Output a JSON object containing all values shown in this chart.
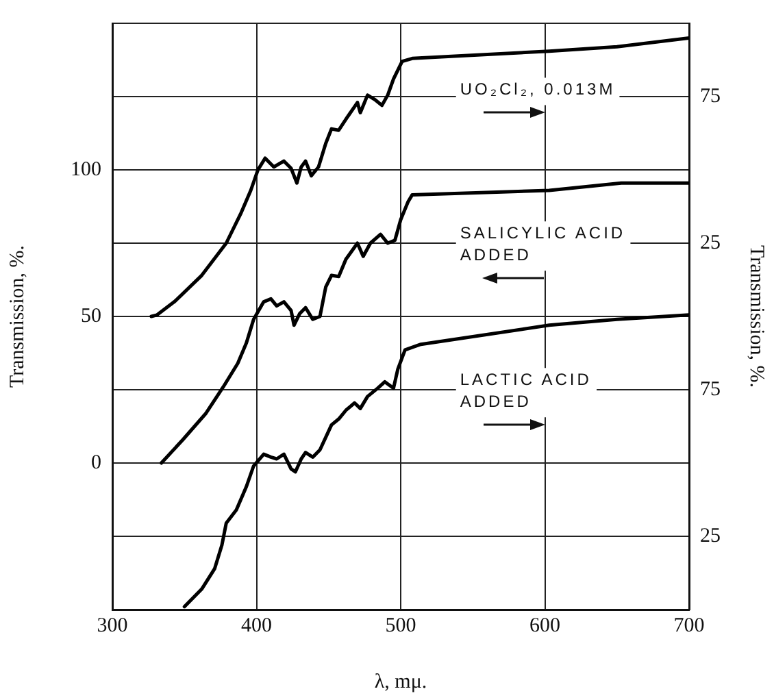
{
  "chart_data": {
    "type": "line",
    "xlabel": "λ, mμ.",
    "ylabel": "Transmission, %.",
    "y2label": "Transmission, %.",
    "xlim": [
      300,
      700
    ],
    "xticks": [
      300,
      400,
      500,
      600,
      700
    ],
    "ylim": [
      -50,
      150
    ],
    "yticks": [
      {
        "value": -50,
        "label": null
      },
      {
        "value": -25,
        "label": null
      },
      0,
      {
        "value": 25,
        "label": null
      },
      50,
      {
        "value": 75,
        "label": null
      },
      100,
      {
        "value": 125,
        "label": null
      },
      {
        "value": 150,
        "label": null
      }
    ],
    "y2lim": [
      -100,
      100
    ],
    "y2ticks": [
      25,
      75
    ],
    "y3lim": [
      0,
      200
    ],
    "y3ticks": [
      25,
      75
    ],
    "grid": true,
    "legend": false,
    "marker": "none",
    "line_style": "solid",
    "series": [
      {
        "color": "#000000",
        "x": [
          327,
          331,
          343,
          362,
          379,
          389,
          396,
          401,
          406,
          412,
          419,
          424,
          428,
          431,
          434,
          438,
          443,
          448,
          452,
          457,
          463,
          470,
          472,
          477,
          482,
          487,
          491,
          495,
          501,
          508,
          603,
          650,
          700
        ],
        "values": [
          50,
          50.5,
          55,
          64,
          75,
          85,
          93,
          100,
          104,
          101,
          103,
          100.5,
          95.5,
          101,
          103,
          98,
          101,
          109,
          114,
          113.5,
          118,
          123,
          119.5,
          125.5,
          124,
          122,
          125.5,
          131,
          137,
          138,
          140.5,
          142,
          145
        ]
      },
      {
        "color": "#000000",
        "x": [
          334,
          349,
          365,
          377,
          387,
          393,
          398,
          405,
          410,
          414,
          419,
          424,
          426,
          430,
          434,
          439,
          444,
          448,
          452,
          457,
          462,
          470,
          474,
          479,
          486,
          491,
          496,
          500,
          505,
          508,
          603,
          653,
          700
        ],
        "values": [
          0,
          8,
          17,
          26,
          34,
          41,
          49,
          55,
          56,
          53.6,
          55,
          52,
          47,
          51,
          53,
          49,
          50,
          60,
          64,
          63.6,
          69.5,
          75,
          70.5,
          75,
          78,
          75,
          76,
          83,
          89,
          91.5,
          93,
          95.5,
          95.5
        ]
      },
      {
        "color": "#000000",
        "x": [
          350,
          362,
          371,
          376,
          379,
          386,
          393,
          398,
          405,
          410,
          414,
          419,
          424,
          427,
          431,
          434,
          439,
          444,
          452,
          457,
          462,
          468,
          472,
          477,
          484,
          489,
          495,
          498,
          503,
          514,
          603,
          650,
          700
        ],
        "values": [
          -49,
          -43,
          -36,
          -28,
          -20.5,
          -16,
          -8,
          -1,
          3,
          2,
          1.4,
          3,
          -2,
          -3,
          1.4,
          3.6,
          2,
          4.5,
          13,
          15,
          18,
          20.5,
          18.6,
          22.7,
          25.5,
          27.7,
          25.5,
          32,
          38.6,
          40.5,
          47,
          49,
          50.5
        ]
      }
    ],
    "annotations": [
      "UO₂Cl₂, 0.013M",
      "SALICYLIC ACID ADDED",
      "LACTIC ACID ADDED"
    ]
  }
}
